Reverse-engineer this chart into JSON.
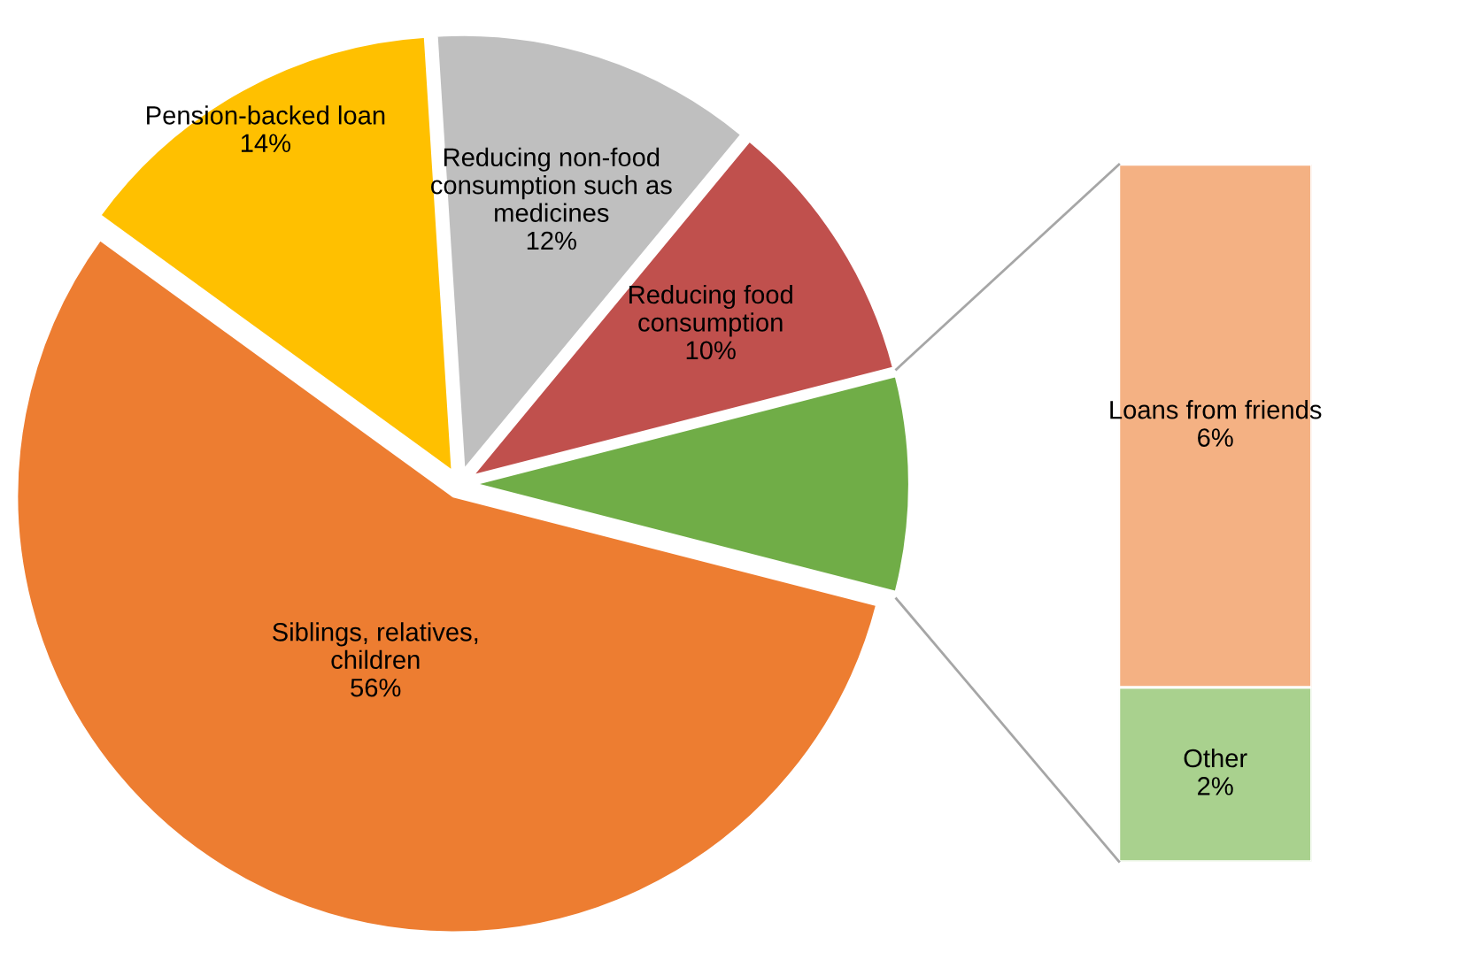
{
  "chart_data": [
    {
      "type": "pie",
      "categories": [
        null,
        "Reducing food consumption",
        "Reducing non-food consumption such as medicines",
        "Pension-backed loan",
        "Siblings, relatives, children"
      ],
      "values": [
        8,
        10,
        12,
        14,
        56
      ],
      "value_labels": [
        null,
        "10%",
        "12%",
        "14%",
        "56%"
      ],
      "colors": [
        "#70ad47",
        "#c0504d",
        "#bfbfbf",
        "#ffc000",
        "#ed7d31"
      ]
    },
    {
      "type": "bar",
      "stacked": true,
      "categories": [
        null
      ],
      "ylim": [
        0,
        8
      ],
      "series": [
        {
          "name": "Other",
          "color": "#a9d18e",
          "values": [
            2
          ],
          "value_labels": [
            "2%"
          ]
        },
        {
          "name": "Loans from friends",
          "color": "#f4b183",
          "values": [
            6
          ],
          "value_labels": [
            "6%"
          ]
        }
      ]
    }
  ]
}
